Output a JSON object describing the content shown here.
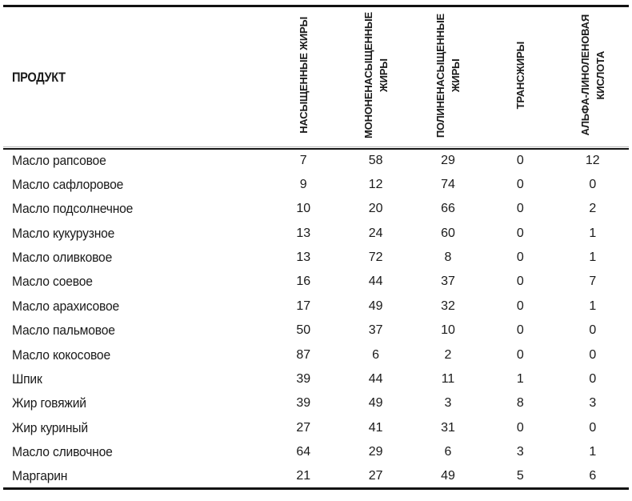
{
  "colors": {
    "text": "#1a1a1a",
    "rule": "#121212",
    "background": "#ffffff"
  },
  "table": {
    "product_column_header": "ПРОДУКТ",
    "value_columns": [
      {
        "id": "saturated-fats",
        "label": "НАСЫЩЕННЫЕ ЖИРЫ"
      },
      {
        "id": "monounsaturated-fats",
        "label": "МОНОНЕНАСЫЩЕННЫЕ\nЖИРЫ"
      },
      {
        "id": "polyunsaturated-fats",
        "label": "ПОЛИНЕНАСЫЩЕННЫЕ\nЖИРЫ"
      },
      {
        "id": "trans-fats",
        "label": "ТРАНСЖИРЫ"
      },
      {
        "id": "alpha-linolenic-acid",
        "label": "АЛЬФА-ЛИНОЛЕНОВАЯ\nКИСЛОТА"
      }
    ],
    "rows": [
      {
        "product": "Масло рапсовое",
        "values": [
          "7",
          "58",
          "29",
          "0",
          "12"
        ]
      },
      {
        "product": "Масло сафлоровое",
        "values": [
          "9",
          "12",
          "74",
          "0",
          "0"
        ]
      },
      {
        "product": "Масло подсолнечное",
        "values": [
          "10",
          "20",
          "66",
          "0",
          "2"
        ]
      },
      {
        "product": "Масло кукурузное",
        "values": [
          "13",
          "24",
          "60",
          "0",
          "1"
        ]
      },
      {
        "product": "Масло оливковое",
        "values": [
          "13",
          "72",
          "8",
          "0",
          "1"
        ]
      },
      {
        "product": "Масло соевое",
        "values": [
          "16",
          "44",
          "37",
          "0",
          "7"
        ]
      },
      {
        "product": "Масло арахисовое",
        "values": [
          "17",
          "49",
          "32",
          "0",
          "1"
        ]
      },
      {
        "product": "Масло пальмовое",
        "values": [
          "50",
          "37",
          "10",
          "0",
          "0"
        ]
      },
      {
        "product": "Масло кокосовое",
        "values": [
          "87",
          "6",
          "2",
          "0",
          "0"
        ]
      },
      {
        "product": "Шпик",
        "values": [
          "39",
          "44",
          "11",
          "1",
          "0"
        ]
      },
      {
        "product": "Жир говяжий",
        "values": [
          "39",
          "49",
          "3",
          "8",
          "3"
        ]
      },
      {
        "product": "Жир куриный",
        "values": [
          "27",
          "41",
          "31",
          "0",
          "0"
        ]
      },
      {
        "product": "Масло сливочное",
        "values": [
          "64",
          "29",
          "6",
          "3",
          "1"
        ]
      },
      {
        "product": "Маргарин",
        "values": [
          "21",
          "27",
          "49",
          "5",
          "6"
        ]
      }
    ]
  }
}
